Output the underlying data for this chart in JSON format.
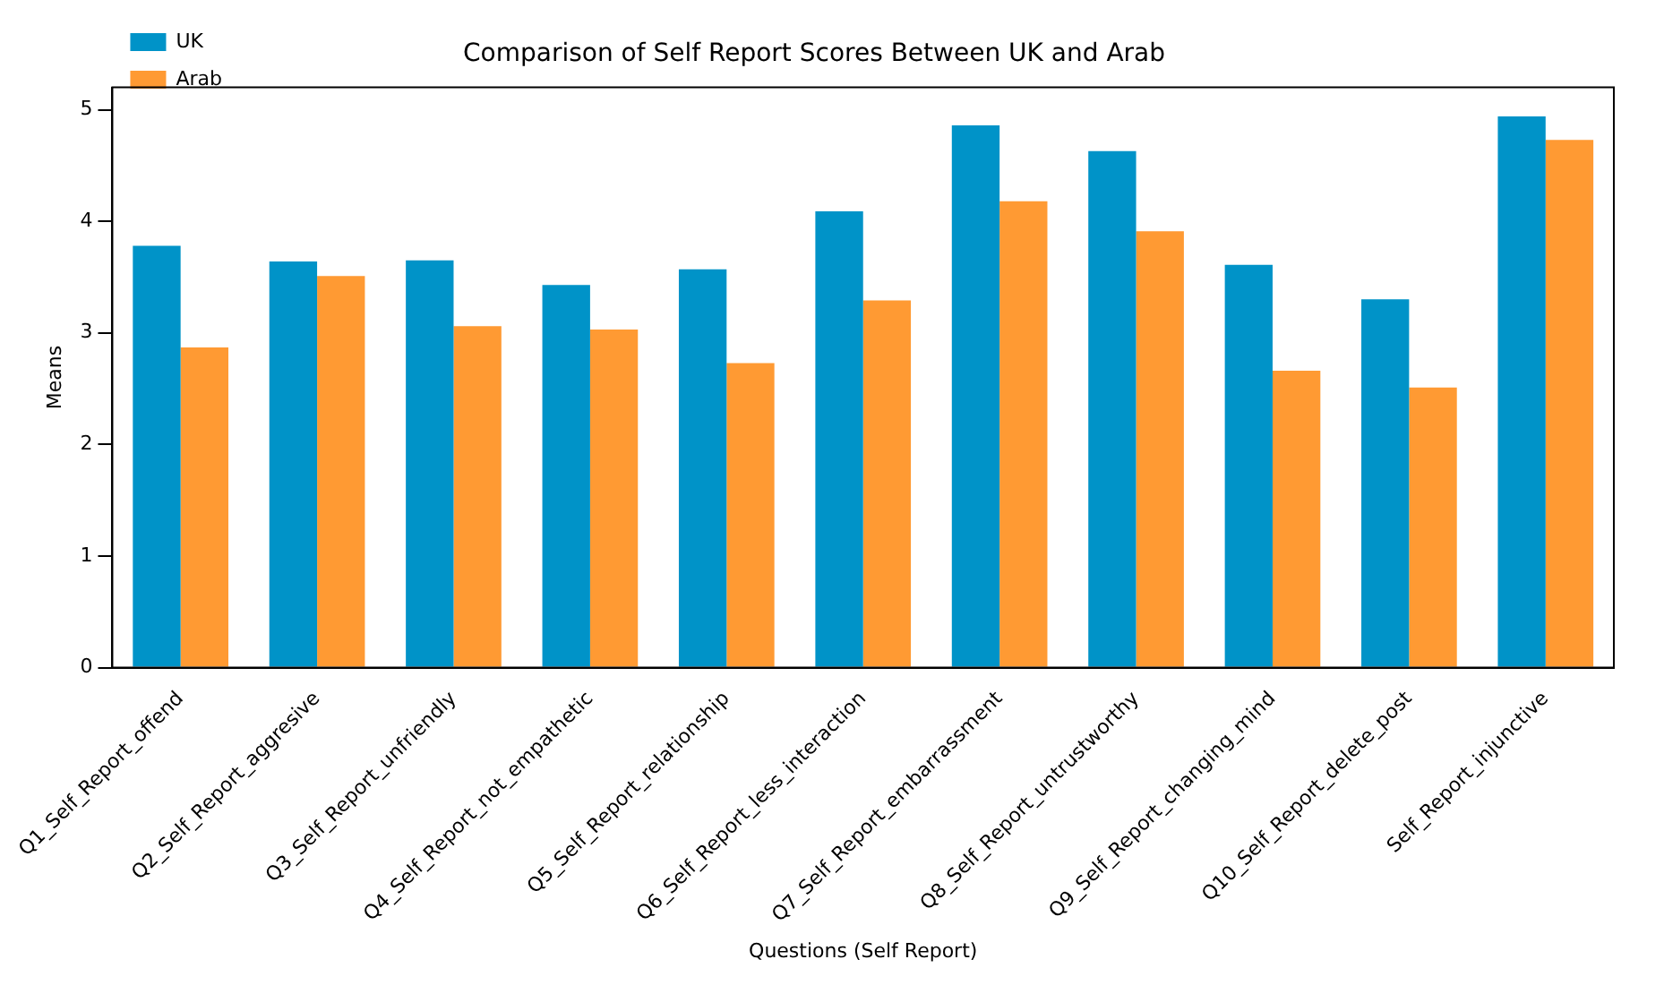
{
  "chart_data": {
    "type": "bar",
    "title": "Comparison of Self Report Scores Between UK and Arab",
    "xlabel": "Questions (Self Report)",
    "ylabel": "Means",
    "categories": [
      "Q1_Self_Report_offend",
      "Q2_Self_Report_aggresive",
      "Q3_Self_Report_unfriendly",
      "Q4_Self_Report_not_empathetic",
      "Q5_Self_Report_relationship",
      "Q6_Self_Report_less_interaction",
      "Q7_Self_Report_embarrassment",
      "Q8_Self_Report_untrustworthy",
      "Q9_Self_Report_changing_mind",
      "Q10_Self_Report_delete_post",
      "Self_Report_injunctive"
    ],
    "series": [
      {
        "name": "UK",
        "color": "#0093c8",
        "values": [
          3.78,
          3.64,
          3.65,
          3.43,
          3.57,
          4.09,
          4.86,
          4.63,
          3.61,
          3.3,
          4.94
        ]
      },
      {
        "name": "Arab",
        "color": "#ff9a33",
        "values": [
          2.87,
          3.51,
          3.06,
          3.03,
          2.73,
          3.29,
          4.18,
          3.91,
          2.66,
          2.51,
          4.73
        ]
      }
    ],
    "ylim": [
      0,
      5.2
    ],
    "yticks": [
      0,
      1,
      2,
      3,
      4,
      5
    ],
    "grid": false,
    "legend": "top left"
  }
}
